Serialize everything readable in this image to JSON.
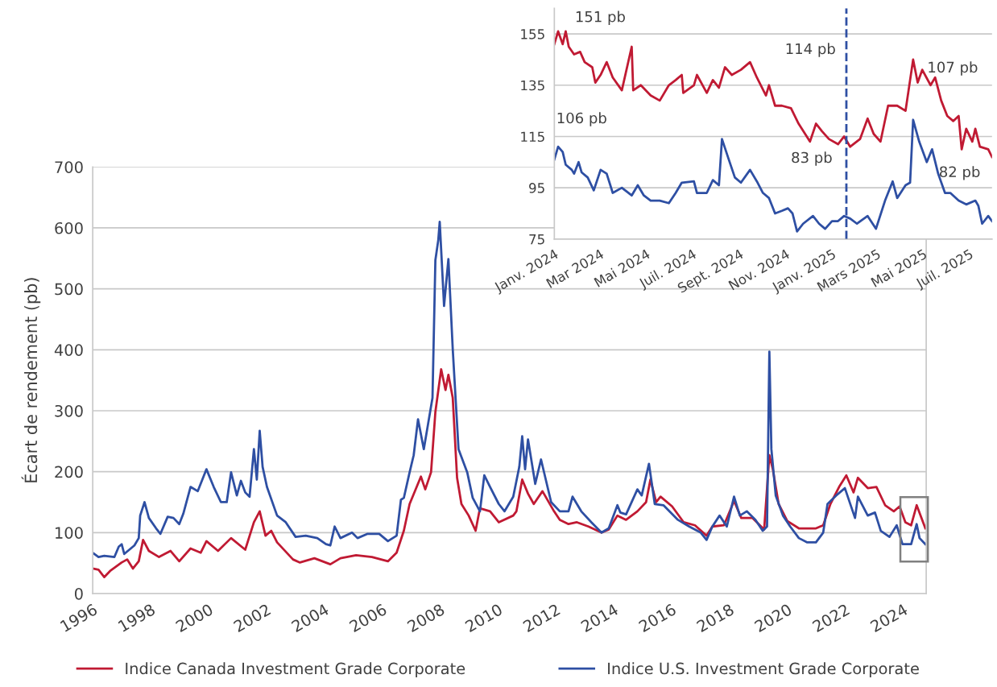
{
  "chart_data": [
    {
      "type": "line",
      "ylabel": "Écart de rendement (pb)",
      "xlim": [
        1996,
        2024.8
      ],
      "xticks": [
        1996,
        1998,
        2000,
        2002,
        2004,
        2006,
        2008,
        2010,
        2012,
        2014,
        2016,
        2018,
        2020,
        2022,
        2024
      ],
      "ylim": [
        0,
        700
      ],
      "yticks": [
        0,
        100,
        200,
        300,
        400,
        500,
        600,
        700
      ],
      "grid": "y",
      "legend": "bottom",
      "line_style": "solid",
      "marker": "none",
      "series": [
        {
          "name": "Indice Canada Investment Grade Corporate",
          "color": "#c01a33",
          "x": [
            1996.0,
            1996.2,
            1996.4,
            1996.6,
            1997.0,
            1997.19,
            1997.39,
            1997.59,
            1997.74,
            1997.94,
            1998.29,
            1998.69,
            1998.99,
            1999.38,
            1999.73,
            1999.93,
            2000.33,
            2000.78,
            2001.27,
            2001.57,
            2001.77,
            2001.97,
            2002.17,
            2002.37,
            2002.92,
            2003.16,
            2003.66,
            2004.21,
            2004.56,
            2005.1,
            2005.65,
            2006.2,
            2006.5,
            2006.75,
            2006.95,
            2007.34,
            2007.49,
            2007.69,
            2007.84,
            2008.04,
            2008.19,
            2008.29,
            2008.44,
            2008.59,
            2008.74,
            2008.99,
            2009.23,
            2009.38,
            2009.73,
            2010.03,
            2010.53,
            2010.64,
            2010.84,
            2011.04,
            2011.24,
            2011.54,
            2011.94,
            2012.14,
            2012.44,
            2012.73,
            2013.13,
            2013.58,
            2013.83,
            2014.13,
            2014.43,
            2014.82,
            2015.12,
            2015.27,
            2015.47,
            2015.62,
            2016.02,
            2016.42,
            2016.81,
            2017.21,
            2017.41,
            2017.81,
            2018.16,
            2018.41,
            2018.8,
            2019.2,
            2019.38,
            2019.5,
            2019.7,
            2020.0,
            2020.4,
            2020.99,
            2021.24,
            2021.49,
            2021.79,
            2022.04,
            2022.29,
            2022.44,
            2022.78,
            2023.08,
            2023.38,
            2023.68,
            2023.88,
            2024.08,
            2024.28,
            2024.47,
            2024.77
          ],
          "values": [
            41,
            39,
            27,
            37,
            51,
            56,
            41,
            53,
            88,
            70,
            60,
            70,
            53,
            74,
            67,
            86,
            70,
            91,
            72,
            117,
            135,
            95,
            103,
            84,
            56,
            51,
            58,
            48,
            58,
            63,
            60,
            53,
            67,
            103,
            147,
            192,
            171,
            199,
            298,
            368,
            334,
            359,
            321,
            190,
            147,
            128,
            103,
            140,
            135,
            117,
            128,
            135,
            187,
            164,
            147,
            168,
            135,
            121,
            114,
            117,
            110,
            100,
            105,
            128,
            121,
            135,
            150,
            187,
            150,
            159,
            143,
            117,
            112,
            95,
            110,
            112,
            152,
            124,
            124,
            105,
            227,
            204,
            147,
            119,
            107,
            107,
            112,
            147,
            175,
            194,
            166,
            190,
            173,
            175,
            145,
            135,
            143,
            117,
            112,
            145,
            107
          ]
        },
        {
          "name": "Indice U.S. Investment Grade Corporate",
          "color": "#2e4fa3",
          "x": [
            1996.0,
            1996.2,
            1996.4,
            1996.75,
            1996.9,
            1997.0,
            1997.09,
            1997.44,
            1997.59,
            1997.64,
            1997.79,
            1997.94,
            1998.19,
            1998.34,
            1998.59,
            1998.79,
            1998.99,
            1999.13,
            1999.38,
            1999.63,
            1999.93,
            2000.18,
            2000.43,
            2000.63,
            2000.78,
            2000.98,
            2001.12,
            2001.27,
            2001.42,
            2001.57,
            2001.67,
            2001.77,
            2001.87,
            2002.02,
            2002.37,
            2002.67,
            2003.01,
            2003.36,
            2003.76,
            2004.06,
            2004.21,
            2004.36,
            2004.56,
            2004.96,
            2005.15,
            2005.5,
            2005.9,
            2006.2,
            2006.5,
            2006.65,
            2006.75,
            2006.95,
            2007.09,
            2007.24,
            2007.44,
            2007.59,
            2007.74,
            2007.84,
            2007.94,
            2007.99,
            2008.14,
            2008.29,
            2008.44,
            2008.64,
            2008.94,
            2009.13,
            2009.38,
            2009.53,
            2009.73,
            2010.03,
            2010.23,
            2010.53,
            2010.74,
            2010.84,
            2010.94,
            2011.04,
            2011.29,
            2011.49,
            2011.84,
            2012.14,
            2012.44,
            2012.58,
            2012.88,
            2013.23,
            2013.58,
            2013.83,
            2014.13,
            2014.23,
            2014.43,
            2014.82,
            2014.97,
            2015.22,
            2015.42,
            2015.72,
            2016.22,
            2016.61,
            2017.01,
            2017.21,
            2017.41,
            2017.66,
            2017.91,
            2018.16,
            2018.36,
            2018.6,
            2018.9,
            2019.15,
            2019.3,
            2019.38,
            2019.45,
            2019.6,
            2019.85,
            2020.1,
            2020.4,
            2020.69,
            2020.99,
            2021.24,
            2021.39,
            2021.69,
            2021.99,
            2022.34,
            2022.44,
            2022.78,
            2023.03,
            2023.23,
            2023.53,
            2023.78,
            2023.98,
            2024.28,
            2024.47,
            2024.57,
            2024.77
          ],
          "values": [
            67,
            60,
            62,
            60,
            77,
            81,
            65,
            79,
            91,
            128,
            150,
            124,
            107,
            98,
            126,
            124,
            114,
            131,
            175,
            168,
            204,
            175,
            150,
            150,
            199,
            161,
            185,
            166,
            159,
            237,
            187,
            267,
            208,
            175,
            128,
            117,
            93,
            95,
            91,
            81,
            79,
            110,
            91,
            100,
            91,
            98,
            98,
            86,
            95,
            154,
            157,
            199,
            227,
            286,
            237,
            279,
            321,
            547,
            580,
            610,
            472,
            549,
            401,
            237,
            199,
            157,
            135,
            194,
            175,
            147,
            135,
            159,
            208,
            258,
            204,
            253,
            180,
            220,
            150,
            135,
            135,
            159,
            135,
            117,
            100,
            107,
            145,
            133,
            130,
            171,
            161,
            213,
            147,
            145,
            121,
            110,
            100,
            88,
            110,
            128,
            110,
            159,
            128,
            135,
            121,
            103,
            110,
            397,
            237,
            161,
            128,
            110,
            91,
            84,
            84,
            100,
            147,
            161,
            173,
            124,
            159,
            128,
            133,
            103,
            93,
            112,
            81,
            81,
            114,
            91,
            81
          ]
        }
      ]
    },
    {
      "type": "line",
      "xlim": [
        "2024-01-01",
        "2025-07-31"
      ],
      "xticks": [
        {
          "value": "2024-01-01",
          "label": "Janv. 2024"
        },
        {
          "value": "2024-03-01",
          "label": "Mar 2024"
        },
        {
          "value": "2024-05-01",
          "label": "Mai 2024"
        },
        {
          "value": "2024-07-01",
          "label": "Juil. 2024"
        },
        {
          "value": "2024-09-01",
          "label": "Sept. 2024"
        },
        {
          "value": "2024-11-01",
          "label": "Nov. 2024"
        },
        {
          "value": "2025-01-01",
          "label": "Janv. 2025"
        },
        {
          "value": "2025-03-01",
          "label": "Mars 2025"
        },
        {
          "value": "2025-05-01",
          "label": "Mai 2025"
        },
        {
          "value": "2025-07-01",
          "label": "Juil. 2025"
        }
      ],
      "ylim": [
        75,
        165
      ],
      "yticks": [
        75,
        95,
        115,
        135,
        155
      ],
      "grid": "y",
      "line_style": "solid",
      "marker": "none",
      "ref_lines": [
        {
          "axis": "x",
          "value": "2025-01-20",
          "color": "#2e4fa3",
          "line_style": "dashed"
        }
      ],
      "annotations": [
        "151 pb",
        "106 pb",
        "114 pb",
        "83 pb",
        "107 pb",
        "82 pb"
      ],
      "series": [
        {
          "color": "#c01a33",
          "x": [
            "2024-01-01",
            "2024-01-06",
            "2024-01-12",
            "2024-01-16",
            "2024-01-20",
            "2024-01-27",
            "2024-02-04",
            "2024-02-10",
            "2024-02-20",
            "2024-02-24",
            "2024-03-02",
            "2024-03-10",
            "2024-03-18",
            "2024-03-30",
            "2024-04-12",
            "2024-04-14",
            "2024-04-24",
            "2024-05-07",
            "2024-05-19",
            "2024-05-31",
            "2024-06-09",
            "2024-06-17",
            "2024-06-19",
            "2024-07-03",
            "2024-07-07",
            "2024-07-20",
            "2024-07-28",
            "2024-08-05",
            "2024-08-13",
            "2024-08-22",
            "2024-09-03",
            "2024-09-15",
            "2024-09-24",
            "2024-10-06",
            "2024-10-10",
            "2024-10-18",
            "2024-10-27",
            "2024-11-08",
            "2024-11-18",
            "2024-12-03",
            "2024-12-11",
            "2024-12-19",
            "2024-12-28",
            "2025-01-09",
            "2025-01-17",
            "2025-01-25",
            "2025-02-07",
            "2025-02-17",
            "2025-02-25",
            "2025-03-06",
            "2025-03-16",
            "2025-03-28",
            "2025-04-08",
            "2025-04-18",
            "2025-04-24",
            "2025-04-30",
            "2025-05-11",
            "2025-05-17",
            "2025-05-25",
            "2025-06-02",
            "2025-06-10",
            "2025-06-17",
            "2025-06-21",
            "2025-06-27",
            "2025-07-05",
            "2025-07-09",
            "2025-07-15",
            "2025-07-26",
            "2025-07-31"
          ],
          "values": [
            151,
            156,
            151,
            156,
            150,
            147,
            148,
            144,
            142,
            136,
            139,
            144,
            138,
            133,
            150,
            133,
            135,
            131,
            129,
            135,
            137,
            139,
            132,
            135,
            139,
            132,
            137,
            134,
            142,
            139,
            141,
            144,
            138,
            131,
            135,
            127,
            127,
            126,
            120,
            113,
            120,
            117,
            114,
            112,
            115,
            111,
            114,
            122,
            116,
            113,
            127,
            127,
            125,
            145,
            136,
            141,
            135,
            138,
            129,
            123,
            121,
            123,
            110,
            118,
            113,
            118,
            111,
            110,
            107
          ]
        },
        {
          "color": "#2e4fa3",
          "x": [
            "2024-01-01",
            "2024-01-06",
            "2024-01-12",
            "2024-01-16",
            "2024-01-24",
            "2024-01-27",
            "2024-02-02",
            "2024-02-06",
            "2024-02-14",
            "2024-02-22",
            "2024-03-02",
            "2024-03-10",
            "2024-03-18",
            "2024-03-30",
            "2024-04-12",
            "2024-04-20",
            "2024-04-28",
            "2024-05-07",
            "2024-05-19",
            "2024-05-31",
            "2024-06-09",
            "2024-06-17",
            "2024-07-03",
            "2024-07-07",
            "2024-07-20",
            "2024-07-28",
            "2024-08-05",
            "2024-08-09",
            "2024-08-18",
            "2024-08-26",
            "2024-09-03",
            "2024-09-15",
            "2024-09-24",
            "2024-10-02",
            "2024-10-10",
            "2024-10-18",
            "2024-10-27",
            "2024-11-04",
            "2024-11-10",
            "2024-11-16",
            "2024-11-24",
            "2024-12-07",
            "2024-12-15",
            "2024-12-23",
            "2025-01-01",
            "2025-01-09",
            "2025-01-17",
            "2025-01-25",
            "2025-02-03",
            "2025-02-17",
            "2025-02-28",
            "2025-03-12",
            "2025-03-22",
            "2025-03-28",
            "2025-04-08",
            "2025-04-14",
            "2025-04-18",
            "2025-04-26",
            "2025-05-06",
            "2025-05-13",
            "2025-05-21",
            "2025-05-30",
            "2025-06-06",
            "2025-06-17",
            "2025-06-27",
            "2025-07-09",
            "2025-07-13",
            "2025-07-18",
            "2025-07-26",
            "2025-07-31"
          ],
          "values": [
            106,
            111,
            109,
            104,
            102,
            100.5,
            105,
            101,
            99,
            94,
            102,
            100.5,
            93,
            95,
            92,
            96,
            92,
            90,
            90,
            89,
            93,
            97,
            97.5,
            93,
            93,
            98,
            96,
            114,
            106,
            99,
            97,
            102,
            97.5,
            93,
            91,
            85,
            86,
            87,
            85,
            78,
            81,
            84,
            81,
            79,
            82,
            82,
            84,
            83,
            81,
            84,
            79,
            90,
            97.5,
            91,
            96,
            97,
            121.5,
            113,
            105,
            110,
            100.5,
            93,
            93,
            90,
            88.5,
            90,
            88,
            81,
            84,
            82
          ]
        }
      ]
    }
  ]
}
